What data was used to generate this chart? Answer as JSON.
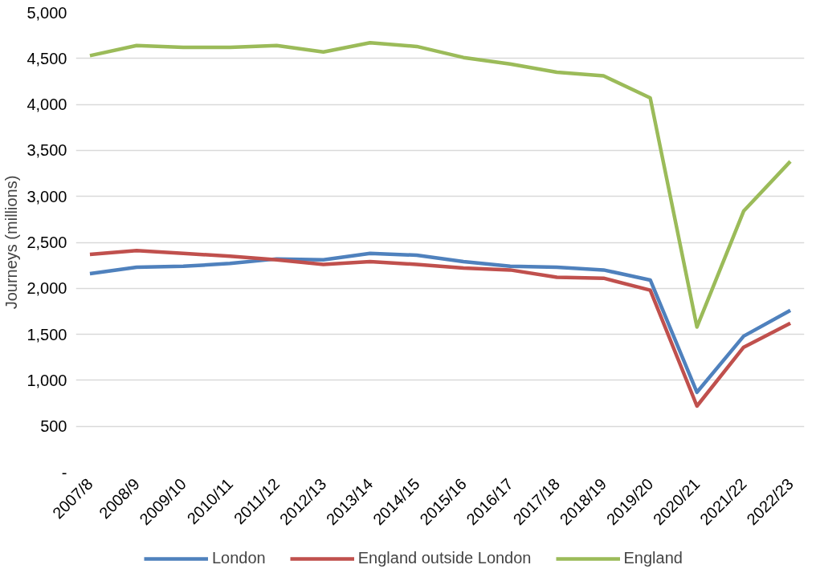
{
  "chart_data": {
    "type": "line",
    "ylabel": "Journeys (millions)",
    "categories": [
      "2007/8",
      "2008/9",
      "2009/10",
      "2010/11",
      "2011/12",
      "2012/13",
      "2013/14",
      "2014/15",
      "2015/16",
      "2016/17",
      "2017/18",
      "2018/19",
      "2019/20",
      "2020/21",
      "2021/22",
      "2022/23"
    ],
    "series": [
      {
        "name": "London",
        "color": "#4f81bd",
        "values": [
          2160,
          2230,
          2240,
          2270,
          2320,
          2310,
          2380,
          2360,
          2290,
          2240,
          2230,
          2200,
          2090,
          870,
          1480,
          1760
        ]
      },
      {
        "name": "England outside London",
        "color": "#c0504d",
        "values": [
          2370,
          2410,
          2380,
          2350,
          2310,
          2260,
          2290,
          2260,
          2220,
          2200,
          2120,
          2110,
          1980,
          720,
          1360,
          1620
        ]
      },
      {
        "name": "England",
        "color": "#9bbb59",
        "values": [
          4530,
          4640,
          4620,
          4620,
          4640,
          4570,
          4670,
          4630,
          4510,
          4440,
          4350,
          4310,
          4070,
          1580,
          2840,
          3380
        ]
      }
    ],
    "ylim": [
      0,
      5000
    ],
    "yticks": [
      {
        "value": 0,
        "label": "-"
      },
      {
        "value": 500,
        "label": "500"
      },
      {
        "value": 1000,
        "label": "1,000"
      },
      {
        "value": 1500,
        "label": "1,500"
      },
      {
        "value": 2000,
        "label": "2,000"
      },
      {
        "value": 2500,
        "label": "2,500"
      },
      {
        "value": 3000,
        "label": "3,000"
      },
      {
        "value": 3500,
        "label": "3,500"
      },
      {
        "value": 4000,
        "label": "4,000"
      },
      {
        "value": 4500,
        "label": "4,500"
      },
      {
        "value": 5000,
        "label": "5,000"
      }
    ],
    "grid": "y",
    "legend": "bottom",
    "marker": "none",
    "line_style": "solid"
  }
}
